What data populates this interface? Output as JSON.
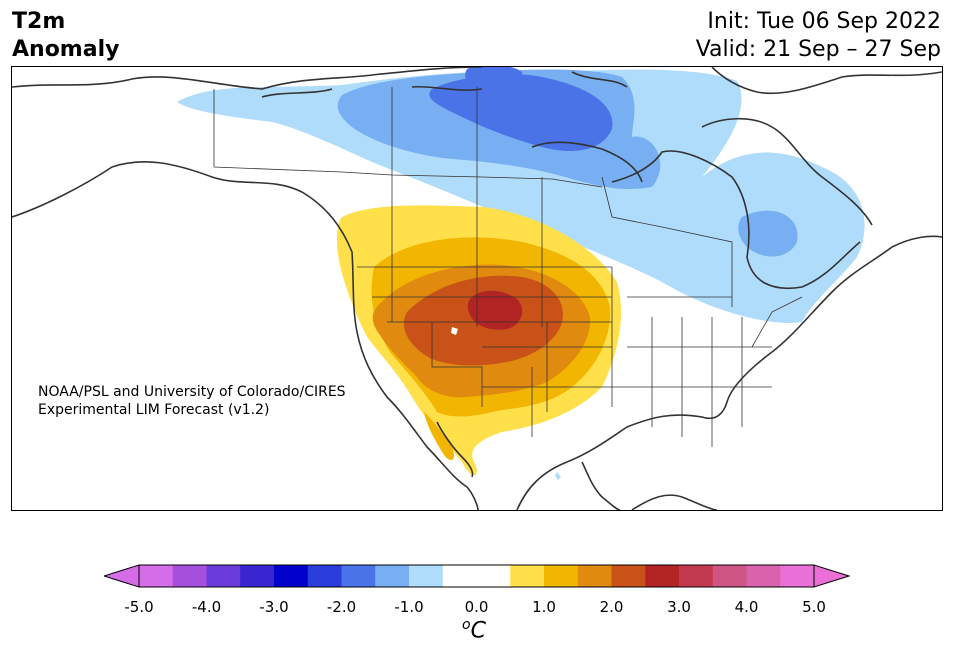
{
  "header": {
    "title_line1": "T2m",
    "title_line2": "Anomaly",
    "init_text": "Init: Tue 06 Sep 2022",
    "valid_text": "Valid: 21 Sep – 27 Sep"
  },
  "map": {
    "region": "North America",
    "variable": "2 m temperature anomaly",
    "credit_line1": "NOAA/PSL and University of Colorado/CIRES",
    "credit_line2": "Experimental LIM Forecast (v1.2)"
  },
  "colorbar": {
    "unit_base": "C",
    "unit_sup": "o",
    "ticks": [
      "-5.0",
      "-4.0",
      "-3.0",
      "-2.0",
      "-1.0",
      "0.0",
      "1.0",
      "2.0",
      "3.0",
      "4.0",
      "5.0"
    ],
    "tick_values": [
      -5,
      -4,
      -3,
      -2,
      -1,
      0,
      1,
      2,
      3,
      4,
      5
    ],
    "range": [
      -5,
      5
    ],
    "step": 0.5,
    "extend": "both",
    "colors": {
      "under": "#d66de8",
      "bins": [
        "#d66de8",
        "#a64fdc",
        "#6b3bdb",
        "#3a26d1",
        "#0000cc",
        "#2a3edb",
        "#4a73e8",
        "#78aff2",
        "#aedcfa",
        "#ffffff",
        "#ffffff",
        "#ffe04a",
        "#f2b500",
        "#e08a10",
        "#c95218",
        "#b22323",
        "#c23a50",
        "#cf5585",
        "#da62ad",
        "#e870d6"
      ],
      "over": "#e870d6"
    }
  },
  "anomaly_colors": {
    "cold_1": "#aedcfa",
    "cold_2": "#78aff2",
    "cold_3": "#4a73e8",
    "warm_1": "#ffe04a",
    "warm_2": "#f2b500",
    "warm_3": "#e08a10",
    "warm_4": "#c95218",
    "warm_5": "#b22323"
  }
}
